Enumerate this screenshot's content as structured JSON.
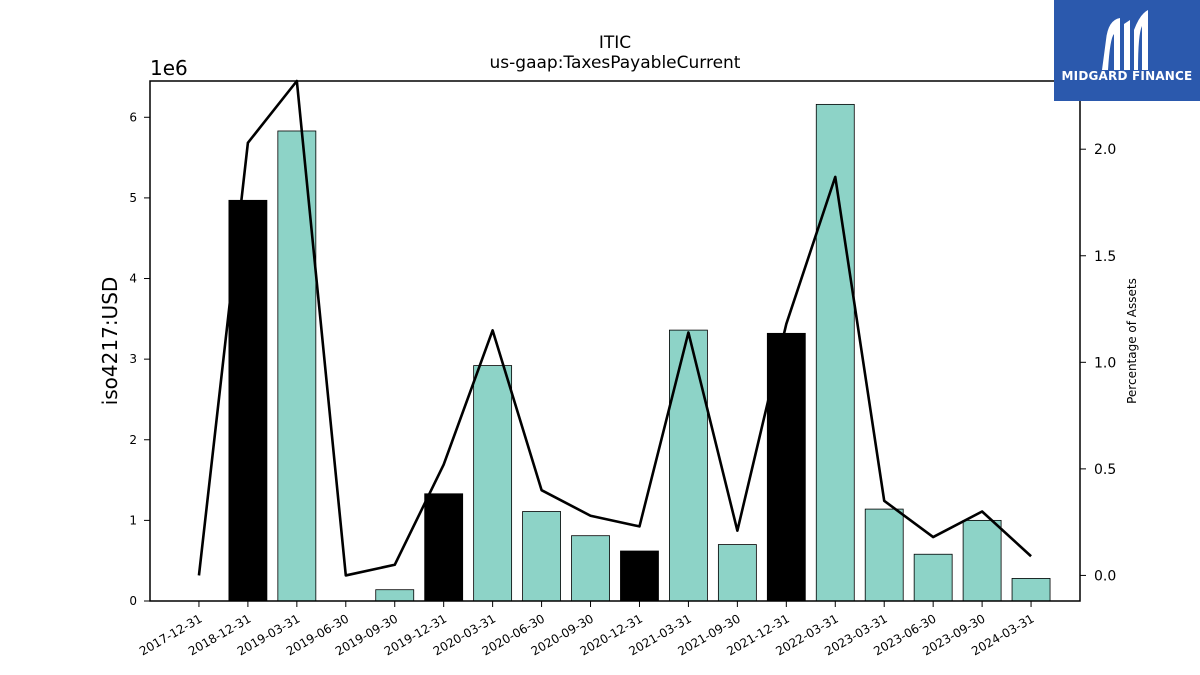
{
  "chart_data": {
    "type": "bar",
    "title": "ITIC",
    "subtitle": "us-gaap:TaxesPayableCurrent",
    "ylabel": "iso4217:USD",
    "y_offset_label": "1e6",
    "y2label": "Percentage of Assets",
    "ylim": [
      0,
      6450000
    ],
    "y2lim": [
      -0.12,
      2.32
    ],
    "yticks": [
      0,
      1,
      2,
      3,
      4,
      5,
      6
    ],
    "y2ticks": [
      "0.0",
      "0.5",
      "1.0",
      "1.5",
      "2.0"
    ],
    "categories": [
      "2017-12-31",
      "2018-12-31",
      "2019-03-31",
      "2019-06-30",
      "2019-09-30",
      "2019-12-31",
      "2020-03-31",
      "2020-06-30",
      "2020-09-30",
      "2020-12-31",
      "2021-03-31",
      "2021-09-30",
      "2021-12-31",
      "2022-03-31",
      "2023-03-31",
      "2023-06-30",
      "2023-09-30",
      "2024-03-31"
    ],
    "values": [
      0,
      4970000,
      5830000,
      0,
      140000,
      1330000,
      2920000,
      1110000,
      810000,
      620000,
      3360000,
      700000,
      3320000,
      6160000,
      1140000,
      580000,
      1000000,
      280000
    ],
    "bar_colors": [
      "#8dd3c7",
      "#000000",
      "#8dd3c7",
      "#8dd3c7",
      "#8dd3c7",
      "#000000",
      "#8dd3c7",
      "#8dd3c7",
      "#8dd3c7",
      "#000000",
      "#8dd3c7",
      "#8dd3c7",
      "#000000",
      "#8dd3c7",
      "#8dd3c7",
      "#8dd3c7",
      "#8dd3c7",
      "#8dd3c7"
    ],
    "line_series": {
      "values": [
        0.0,
        2.03,
        2.32,
        0.0,
        0.05,
        0.52,
        1.15,
        0.4,
        0.28,
        0.23,
        1.14,
        0.21,
        1.18,
        1.87,
        0.35,
        0.18,
        0.3,
        0.09
      ],
      "color": "#000000"
    }
  },
  "logo": {
    "text": "MIDGARD FINANCE",
    "background": "#2b59ad"
  }
}
